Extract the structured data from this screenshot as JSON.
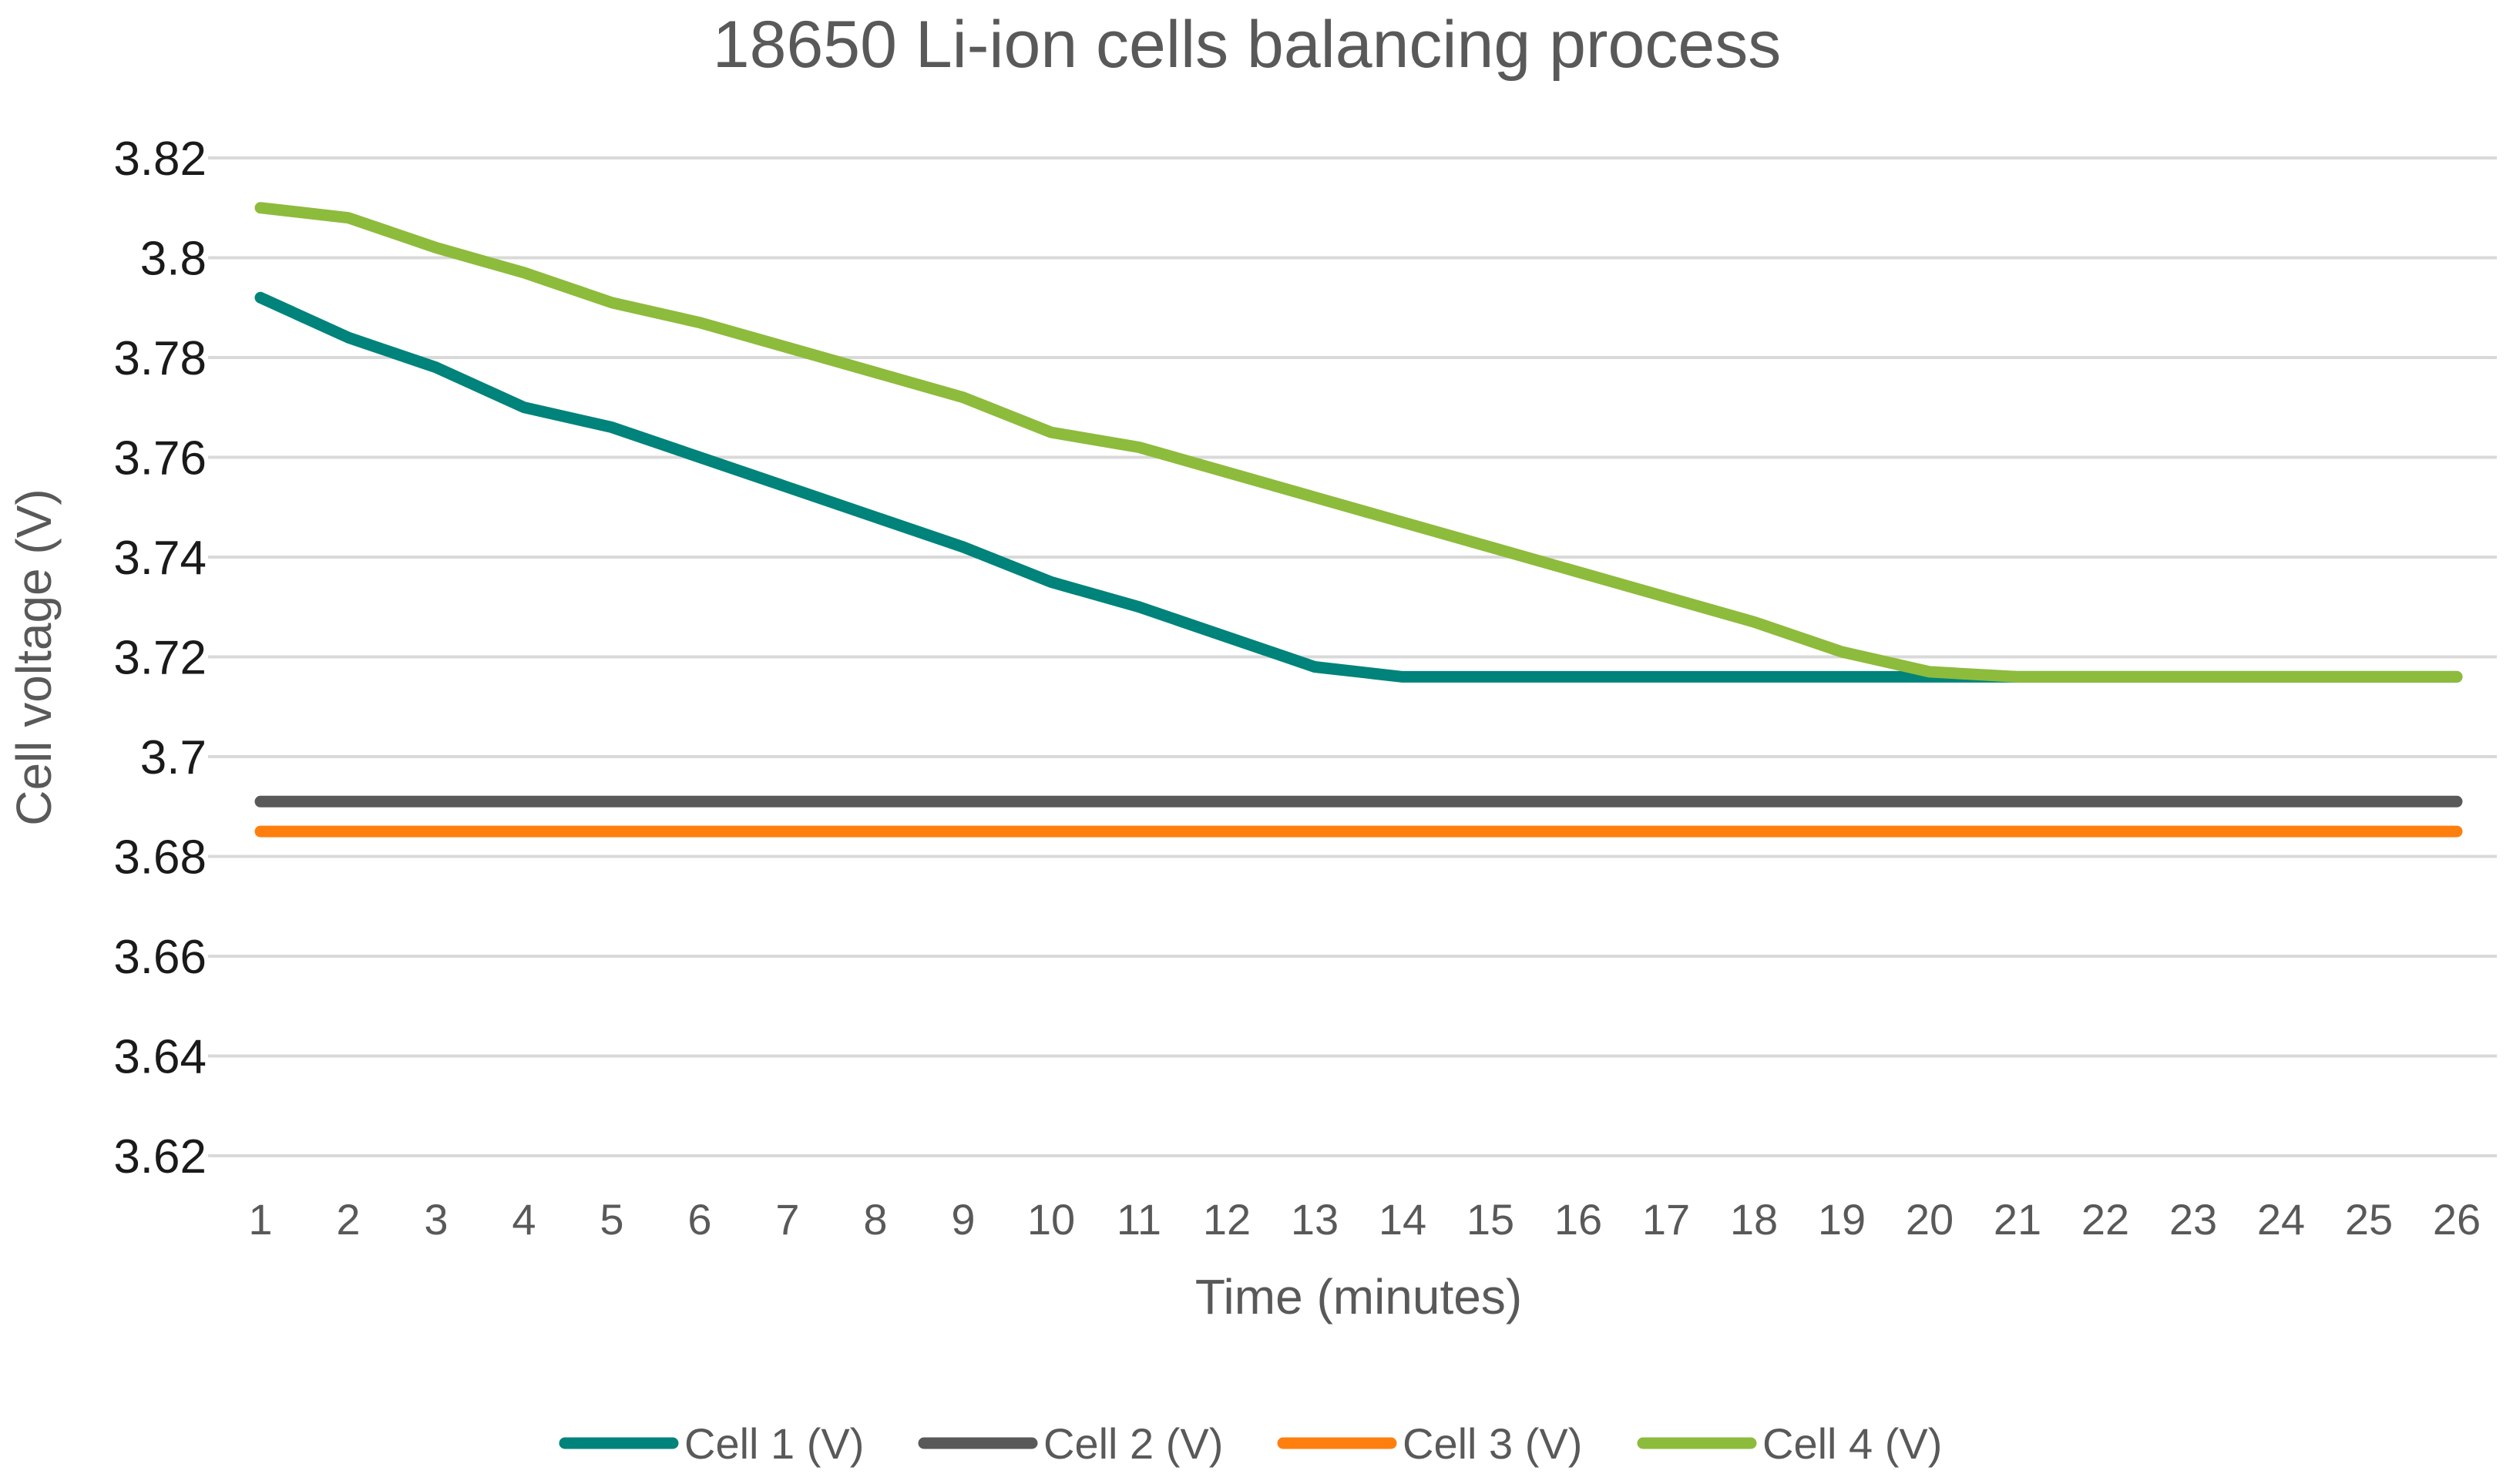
{
  "chart_data": {
    "type": "line",
    "title": "18650 Li-ion cells balancing process",
    "xlabel": "Time (minutes)",
    "ylabel": "Cell voltage (V)",
    "x": [
      1,
      2,
      3,
      4,
      5,
      6,
      7,
      8,
      9,
      10,
      11,
      12,
      13,
      14,
      15,
      16,
      17,
      18,
      19,
      20,
      21,
      22,
      23,
      24,
      25,
      26
    ],
    "x_tick_labels": [
      "1",
      "2",
      "3",
      "4",
      "5",
      "6",
      "7",
      "8",
      "9",
      "10",
      "11",
      "12",
      "13",
      "14",
      "15",
      "16",
      "17",
      "18",
      "19",
      "20",
      "21",
      "22",
      "23",
      "24",
      "25",
      "26"
    ],
    "ylim": [
      3.62,
      3.82
    ],
    "y_ticks": [
      3.62,
      3.64,
      3.66,
      3.68,
      3.7,
      3.72,
      3.74,
      3.76,
      3.78,
      3.8,
      3.82
    ],
    "y_tick_labels": [
      "3.62",
      "3.64",
      "3.66",
      "3.68",
      "3.7",
      "3.72",
      "3.74",
      "3.76",
      "3.78",
      "3.8",
      "3.82"
    ],
    "grid": true,
    "legend_position": "bottom",
    "series": [
      {
        "name": "Cell 1 (V)",
        "color": "#00837A",
        "values": [
          3.792,
          3.784,
          3.778,
          3.77,
          3.766,
          3.76,
          3.754,
          3.748,
          3.742,
          3.735,
          3.73,
          3.724,
          3.718,
          3.716,
          3.716,
          3.716,
          3.716,
          3.716,
          3.716,
          3.716,
          3.716,
          3.716,
          3.716,
          3.716,
          3.716,
          3.716
        ]
      },
      {
        "name": "Cell 2 (V)",
        "color": "#595959",
        "values": [
          3.691,
          3.691,
          3.691,
          3.691,
          3.691,
          3.691,
          3.691,
          3.691,
          3.691,
          3.691,
          3.691,
          3.691,
          3.691,
          3.691,
          3.691,
          3.691,
          3.691,
          3.691,
          3.691,
          3.691,
          3.691,
          3.691,
          3.691,
          3.691,
          3.691,
          3.691
        ]
      },
      {
        "name": "Cell 3 (V)",
        "color": "#FF7F0E",
        "values": [
          3.685,
          3.685,
          3.685,
          3.685,
          3.685,
          3.685,
          3.685,
          3.685,
          3.685,
          3.685,
          3.685,
          3.685,
          3.685,
          3.685,
          3.685,
          3.685,
          3.685,
          3.685,
          3.685,
          3.685,
          3.685,
          3.685,
          3.685,
          3.685,
          3.685,
          3.685
        ]
      },
      {
        "name": "Cell 4 (V)",
        "color": "#8DBB3C",
        "values": [
          3.81,
          3.808,
          3.802,
          3.797,
          3.791,
          3.787,
          3.782,
          3.777,
          3.772,
          3.765,
          3.762,
          3.757,
          3.752,
          3.747,
          3.742,
          3.737,
          3.732,
          3.727,
          3.721,
          3.717,
          3.716,
          3.716,
          3.716,
          3.716,
          3.716,
          3.716
        ]
      }
    ]
  }
}
